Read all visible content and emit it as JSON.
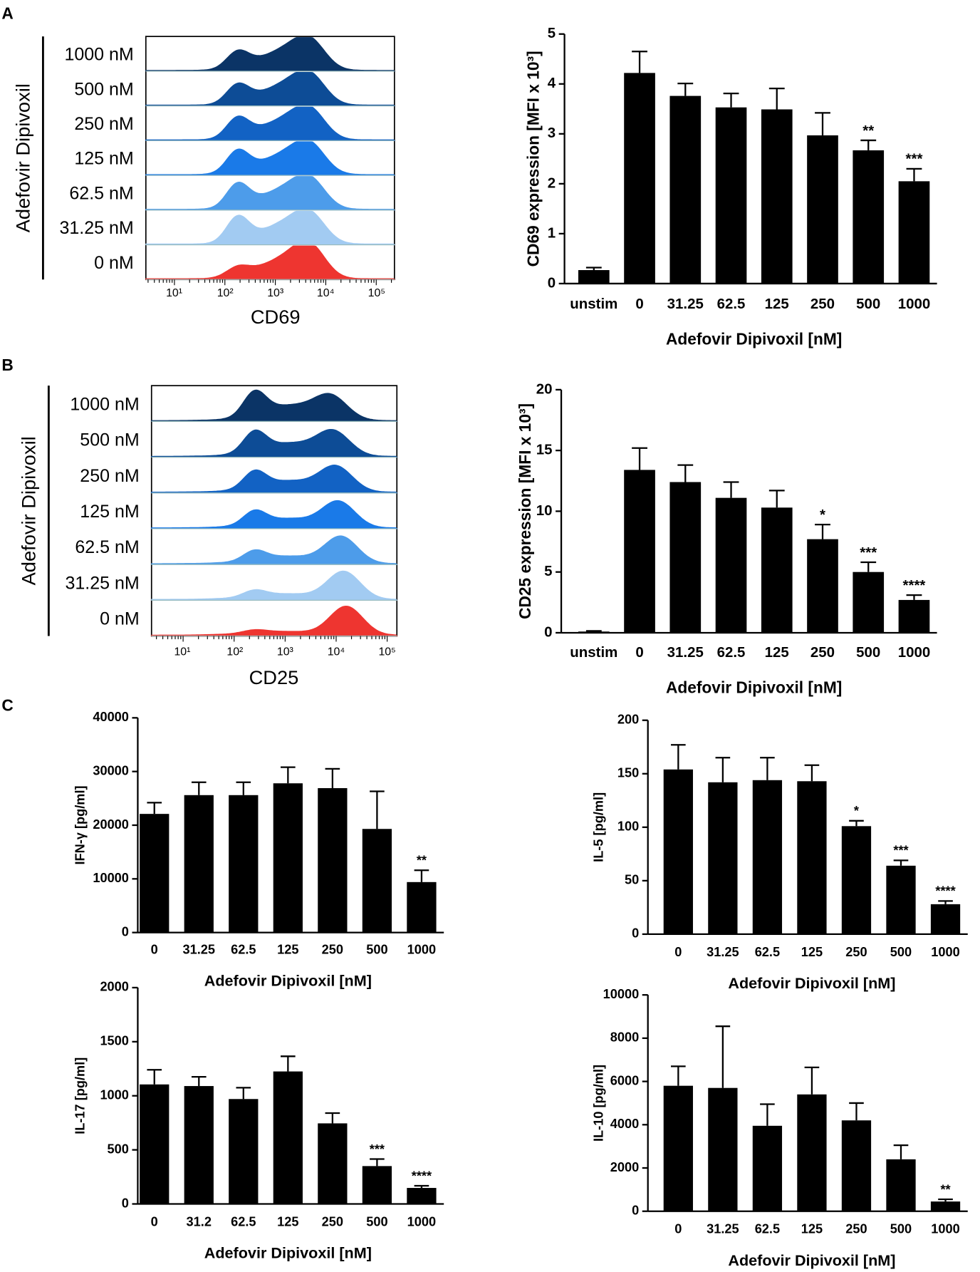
{
  "histograms": [
    {
      "panel": "A",
      "group_label": "Adefovir Dipivoxil",
      "rows": [
        "1000 nM",
        "500 nM",
        "250 nM",
        "125 nM",
        "62.5 nM",
        "31.25 nM",
        "0 nM"
      ],
      "xticks": [
        "10¹",
        "10²",
        "10³",
        "10⁴",
        "10⁵"
      ],
      "xlabel": "CD69"
    },
    {
      "panel": "B",
      "group_label": "Adefovir Dipivoxil",
      "rows": [
        "1000 nM",
        "500 nM",
        "250 nM",
        "125 nM",
        "62.5 nM",
        "31.25 nM",
        "0 nM"
      ],
      "xticks": [
        "10¹",
        "10²",
        "10³",
        "10⁴",
        "10⁵"
      ],
      "xlabel": "CD25"
    }
  ],
  "panel_c": "C",
  "chart_data": [
    {
      "type": "bar",
      "ylabel": "CD69 expression [MFI x 10³]",
      "xlabel": "Adefovir Dipivoxil [nM]",
      "categories": [
        "unstim",
        "0",
        "31.25",
        "62.5",
        "125",
        "250",
        "500",
        "1000"
      ],
      "values": [
        0.27,
        4.22,
        3.76,
        3.53,
        3.49,
        2.97,
        2.67,
        2.05
      ],
      "errors": [
        0.05,
        0.43,
        0.25,
        0.28,
        0.42,
        0.45,
        0.2,
        0.25
      ],
      "annotations": [
        null,
        null,
        null,
        null,
        null,
        null,
        "**",
        "***"
      ],
      "color": "#000000",
      "ylim": [
        0,
        5
      ],
      "yticks": [
        0,
        1,
        2,
        3,
        4,
        5
      ]
    },
    {
      "type": "bar",
      "ylabel": "CD25 expression [MFI x 10³]",
      "xlabel": "Adefovir Dipivoxil [nM]",
      "categories": [
        "unstim",
        "0",
        "31.25",
        "62.5",
        "125",
        "250",
        "500",
        "1000"
      ],
      "values": [
        0.1,
        13.4,
        12.4,
        11.1,
        10.3,
        7.7,
        5.0,
        2.7
      ],
      "errors": [
        0.05,
        1.8,
        1.4,
        1.3,
        1.4,
        1.2,
        0.8,
        0.4
      ],
      "annotations": [
        null,
        null,
        null,
        null,
        null,
        "*",
        "***",
        "****"
      ],
      "color": "#000000",
      "ylim": [
        0,
        20
      ],
      "yticks": [
        0,
        5,
        10,
        15,
        20
      ]
    },
    {
      "type": "bar",
      "ylabel": "IFN-γ [pg/ml]",
      "xlabel": "Adefovir Dipivoxil [nM]",
      "categories": [
        "0",
        "31.25",
        "62.5",
        "125",
        "250",
        "500",
        "1000"
      ],
      "values": [
        22100,
        25600,
        25600,
        27800,
        26900,
        19300,
        9400
      ],
      "errors": [
        2100,
        2400,
        2400,
        3000,
        3600,
        7000,
        2200
      ],
      "annotations": [
        null,
        null,
        null,
        null,
        null,
        null,
        "**"
      ],
      "color": "#000000",
      "ylim": [
        0,
        40000
      ],
      "yticks": [
        0,
        10000,
        20000,
        30000,
        40000
      ]
    },
    {
      "type": "bar",
      "ylabel": "IL-5 [pg/ml]",
      "xlabel": "Adefovir Dipivoxil [nM]",
      "categories": [
        "0",
        "31.25",
        "62.5",
        "125",
        "250",
        "500",
        "1000"
      ],
      "values": [
        154,
        142,
        144,
        143,
        101,
        64,
        28
      ],
      "errors": [
        23,
        23,
        21,
        15,
        5,
        5,
        3
      ],
      "annotations": [
        null,
        null,
        null,
        null,
        "*",
        "***",
        "****"
      ],
      "color": "#000000",
      "ylim": [
        0,
        200
      ],
      "yticks": [
        0,
        50,
        100,
        150,
        200
      ]
    },
    {
      "type": "bar",
      "ylabel": "IL-17 [pg/ml]",
      "xlabel": "Adefovir Dipivoxil [nM]",
      "categories": [
        "0",
        "31.2",
        "62.5",
        "125",
        "250",
        "500",
        "1000"
      ],
      "values": [
        1105,
        1090,
        970,
        1225,
        745,
        350,
        148
      ],
      "errors": [
        135,
        85,
        105,
        140,
        95,
        65,
        20
      ],
      "annotations": [
        null,
        null,
        null,
        null,
        null,
        "***",
        "****"
      ],
      "color": "#000000",
      "ylim": [
        0,
        2000
      ],
      "yticks": [
        0,
        500,
        1000,
        1500,
        2000
      ]
    },
    {
      "type": "bar",
      "ylabel": "IL-10 [pg/ml]",
      "xlabel": "Adefovir Dipivoxil [nM]",
      "categories": [
        "0",
        "31.25",
        "62.5",
        "125",
        "250",
        "500",
        "1000"
      ],
      "values": [
        5800,
        5700,
        3950,
        5400,
        4200,
        2400,
        450
      ],
      "errors": [
        900,
        2850,
        1000,
        1250,
        800,
        650,
        100
      ],
      "annotations": [
        null,
        null,
        null,
        null,
        null,
        null,
        "**"
      ],
      "color": "#000000",
      "ylim": [
        0,
        10000
      ],
      "yticks": [
        0,
        2000,
        4000,
        6000,
        8000,
        10000
      ]
    }
  ]
}
